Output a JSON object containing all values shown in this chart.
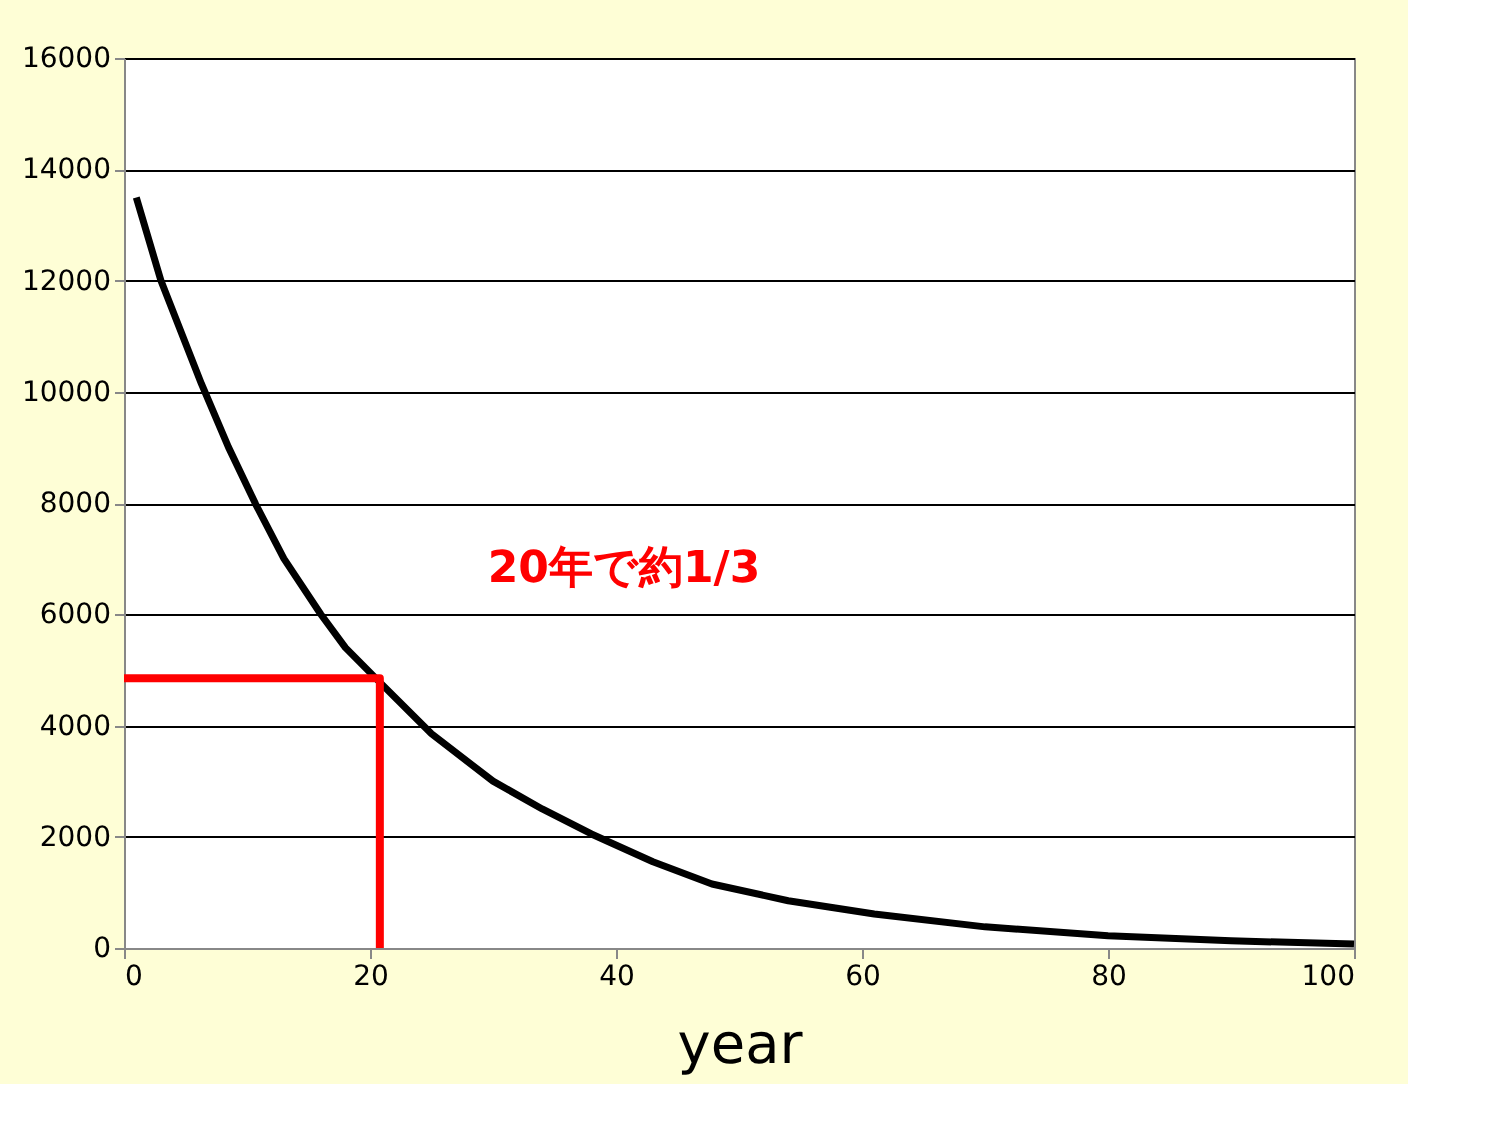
{
  "chart_data": {
    "type": "line",
    "xlabel": "year",
    "xlim": [
      0,
      100
    ],
    "xticks": [
      0,
      20,
      40,
      60,
      80,
      100
    ],
    "ylim": [
      0,
      16000
    ],
    "yticks": [
      0,
      2000,
      4000,
      6000,
      8000,
      10000,
      12000,
      14000,
      16000
    ],
    "grid": "y",
    "marker": "none",
    "line_style": "solid",
    "series": [
      {
        "color": "#000000",
        "x": [
          1,
          3,
          6.3,
          8.5,
          10.7,
          13,
          16,
          18,
          20.6,
          25,
          30,
          34,
          38,
          43,
          47.8,
          54,
          61,
          70,
          80,
          90,
          100
        ],
        "values": [
          13490,
          12000,
          10140,
          9000,
          7980,
          7000,
          6000,
          5400,
          4820,
          3850,
          3000,
          2500,
          2050,
          1550,
          1150,
          850,
          610,
          380,
          220,
          130,
          70
        ]
      },
      {
        "color": "#ff0000",
        "x": [
          0,
          20.8,
          20.8
        ],
        "values": [
          4850,
          4850,
          0
        ]
      }
    ],
    "annotations": [
      "20年で約1/3"
    ]
  }
}
